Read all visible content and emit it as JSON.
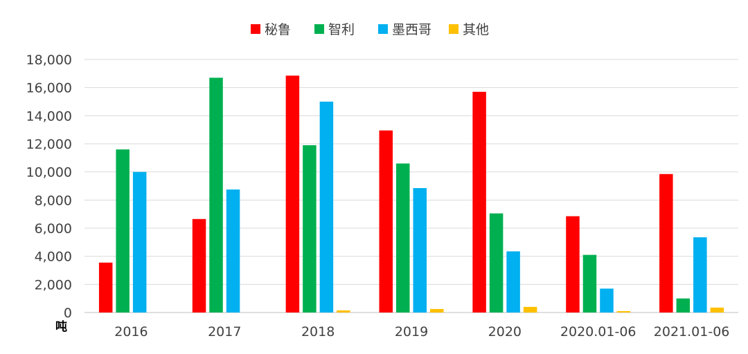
{
  "chart_data": {
    "type": "bar",
    "categories": [
      "2016",
      "2017",
      "2018",
      "2019",
      "2020",
      "2020.01-06",
      "2021.01-06"
    ],
    "series": [
      {
        "name": "秘鲁",
        "color": "#ff0000",
        "values": [
          3550,
          6650,
          16850,
          12950,
          15700,
          6850,
          9850
        ]
      },
      {
        "name": "智利",
        "color": "#00b050",
        "values": [
          11600,
          16700,
          11900,
          10600,
          7050,
          4100,
          1000
        ]
      },
      {
        "name": "墨西哥",
        "color": "#00b0f0",
        "values": [
          10000,
          8750,
          15000,
          8850,
          4350,
          1700,
          5350
        ]
      },
      {
        "name": "其他",
        "color": "#ffc000",
        "values": [
          0,
          0,
          150,
          250,
          400,
          100,
          350
        ]
      }
    ],
    "title": "",
    "xlabel": "",
    "ylabel": "吨",
    "ylim": [
      0,
      18000
    ],
    "yticks": [
      "0",
      "2,000",
      "4,000",
      "6,000",
      "8,000",
      "10,000",
      "12,000",
      "14,000",
      "16,000",
      "18,000"
    ],
    "grid": true,
    "legend_position": "top-center"
  }
}
